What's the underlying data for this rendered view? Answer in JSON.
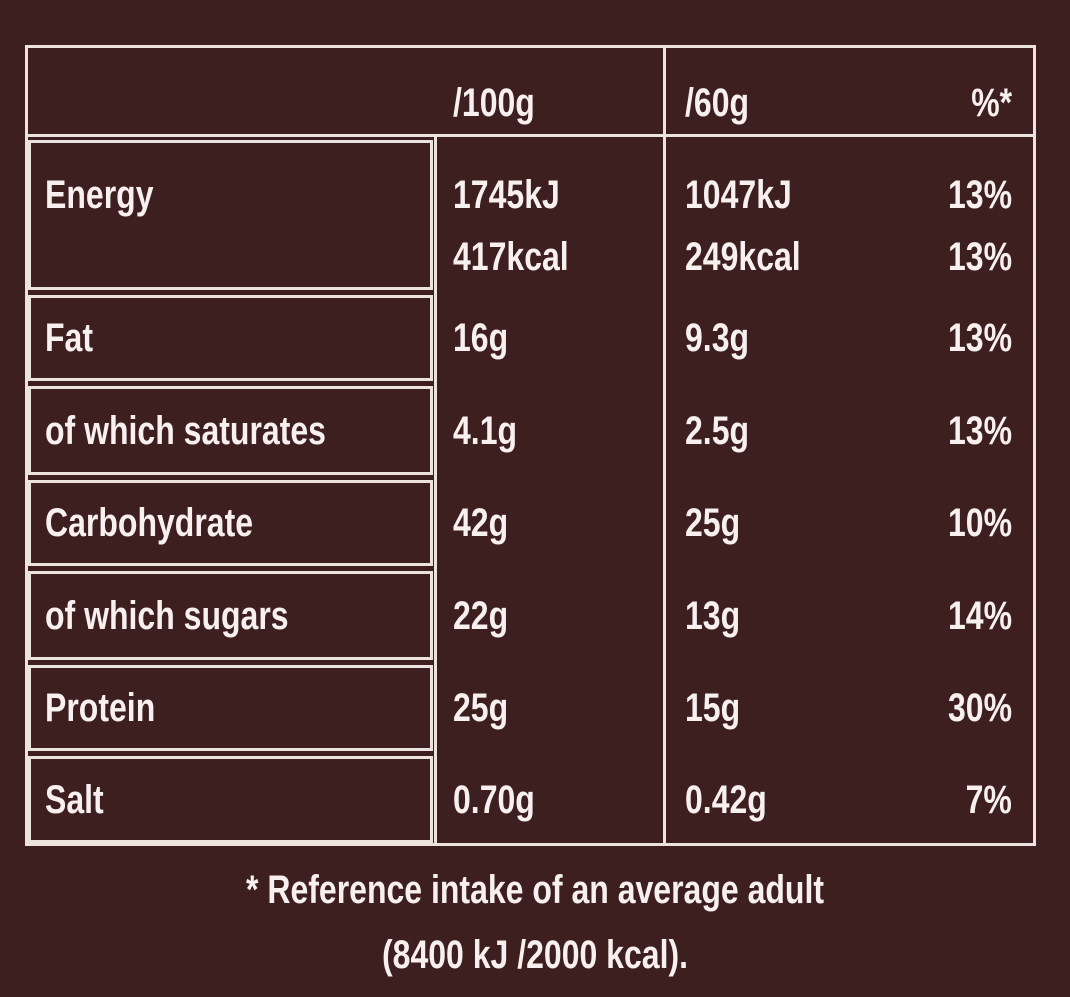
{
  "table": {
    "header": [
      "/100g",
      "/60g",
      "%*"
    ],
    "rows": [
      {
        "label": "Energy",
        "per100g": [
          "1745kJ",
          "417kcal"
        ],
        "per60g": [
          "1047kJ",
          "249kcal"
        ],
        "ri": [
          "13%",
          "13%"
        ]
      },
      {
        "label": "Fat",
        "per100g": [
          "16g"
        ],
        "per60g": [
          "9.3g"
        ],
        "ri": [
          "13%"
        ]
      },
      {
        "label": "of which saturates",
        "per100g": [
          "4.1g"
        ],
        "per60g": [
          "2.5g"
        ],
        "ri": [
          "13%"
        ]
      },
      {
        "label": "Carbohydrate",
        "per100g": [
          "42g"
        ],
        "per60g": [
          "25g"
        ],
        "ri": [
          "10%"
        ]
      },
      {
        "label": "of which sugars",
        "per100g": [
          "22g"
        ],
        "per60g": [
          "13g"
        ],
        "ri": [
          "14%"
        ]
      },
      {
        "label": "Protein",
        "per100g": [
          "25g"
        ],
        "per60g": [
          "15g"
        ],
        "ri": [
          "30%"
        ]
      },
      {
        "label": "Salt",
        "per100g": [
          "0.70g"
        ],
        "per60g": [
          "0.42g"
        ],
        "ri": [
          "7%"
        ]
      }
    ]
  },
  "footnote": [
    "* Reference intake of an average adult",
    "(8400 kJ /2000 kcal)."
  ]
}
